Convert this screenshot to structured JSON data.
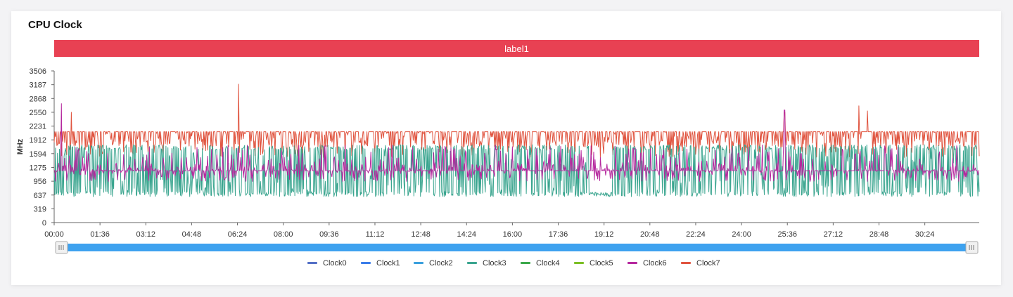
{
  "card": {
    "title": "CPU Clock"
  },
  "band": {
    "label": "label1",
    "color": "#e84153"
  },
  "slider": {
    "color": "#3ea2ef",
    "handle_icon": "grip-icon"
  },
  "chart_data": {
    "type": "line",
    "title": "CPU Clock",
    "ylabel": "MHz",
    "xlabel": "",
    "ylim": [
      0,
      3506
    ],
    "y_ticks": [
      0,
      319,
      637,
      956,
      1275,
      1594,
      1912,
      2231,
      2550,
      2868,
      3187,
      3506
    ],
    "x_ticks": [
      "00:00",
      "01:36",
      "03:12",
      "04:48",
      "06:24",
      "08:00",
      "09:36",
      "11:12",
      "12:48",
      "14:24",
      "16:00",
      "17:36",
      "19:12",
      "20:48",
      "22:24",
      "24:00",
      "25:36",
      "27:12",
      "28:48",
      "30:24"
    ],
    "x_range_minutes": [
      0,
      32.3
    ],
    "grid": false,
    "legend_position": "bottom",
    "series": [
      {
        "name": "Clock0",
        "color": "#5470c6",
        "values": []
      },
      {
        "name": "Clock1",
        "color": "#3b7de9",
        "values": []
      },
      {
        "name": "Clock2",
        "color": "#3ba0dd",
        "values": []
      },
      {
        "name": "Clock3",
        "color": "#3aa58f",
        "values": {
          "base": 1200,
          "low": 600,
          "high": 1800
        }
      },
      {
        "name": "Clock4",
        "color": "#3ba84a",
        "values": []
      },
      {
        "name": "Clock5",
        "color": "#7cbf25",
        "values": []
      },
      {
        "name": "Clock6",
        "color": "#b5289e",
        "values": {
          "base": 1200,
          "low": 950,
          "high": 1800,
          "peaks": [
            [
              0.25,
              2750
            ],
            [
              25.5,
              2600
            ]
          ]
        }
      },
      {
        "name": "Clock7",
        "color": "#e0543f",
        "values": {
          "base": 2100,
          "low": 1500,
          "high": 2100,
          "peaks": [
            [
              0.6,
              2550
            ],
            [
              6.45,
              3200
            ],
            [
              28.1,
              2700
            ],
            [
              28.4,
              2580
            ],
            [
              25.5,
              2550
            ]
          ]
        }
      }
    ]
  }
}
